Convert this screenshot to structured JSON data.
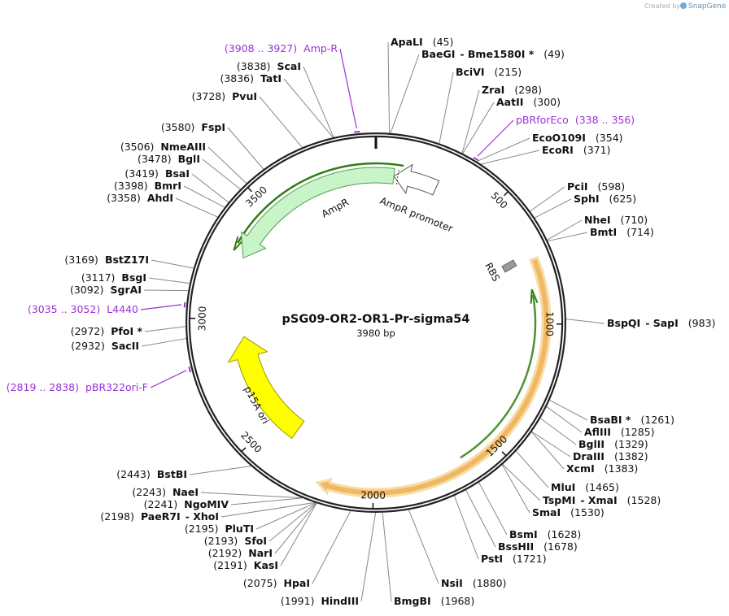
{
  "credit": "Created by",
  "brand": "SnapGene",
  "map": {
    "name": "pSG09-OR2-OR1-Pr-sigma54",
    "size": {
      "value": 3980,
      "label": "3980 bp"
    },
    "ticks": [
      500,
      1000,
      1500,
      2000,
      2500,
      3000,
      3500
    ],
    "sites": [
      {
        "name": "ApaLI",
        "location": {
          "value": 45,
          "label": "(45)"
        }
      },
      {
        "name": "BaeGI",
        "name2": "- Bme1580I *",
        "location": {
          "value": 49,
          "label": "(49)"
        }
      },
      {
        "name": "BciVI",
        "location": {
          "value": 215,
          "label": "(215)"
        }
      },
      {
        "name": "ZraI",
        "location": {
          "value": 298,
          "label": "(298)"
        }
      },
      {
        "name": "AatII",
        "location": {
          "value": 300,
          "label": "(300)"
        }
      },
      {
        "name": "EcoO109I",
        "location": {
          "value": 354,
          "label": "(354)"
        }
      },
      {
        "name": "EcoRI",
        "location": {
          "value": 371,
          "label": "(371)"
        }
      },
      {
        "name": "PciI",
        "location": {
          "value": 598,
          "label": "(598)"
        }
      },
      {
        "name": "SphI",
        "location": {
          "value": 625,
          "label": "(625)"
        }
      },
      {
        "name": "NheI",
        "location": {
          "value": 710,
          "label": "(710)"
        }
      },
      {
        "name": "BmtI",
        "location": {
          "value": 714,
          "label": "(714)"
        }
      },
      {
        "name": "BspQI",
        "name2": "- SapI",
        "location": {
          "value": 983,
          "label": "(983)"
        }
      },
      {
        "name": "BsaBI *",
        "location": {
          "value": 1261,
          "label": "(1261)"
        }
      },
      {
        "name": "AflIII",
        "location": {
          "value": 1285,
          "label": "(1285)"
        }
      },
      {
        "name": "BglII",
        "location": {
          "value": 1329,
          "label": "(1329)"
        }
      },
      {
        "name": "DraIII",
        "location": {
          "value": 1382,
          "label": "(1382)"
        }
      },
      {
        "name": "XcmI",
        "location": {
          "value": 1383,
          "label": "(1383)"
        }
      },
      {
        "name": "MluI",
        "location": {
          "value": 1465,
          "label": "(1465)"
        }
      },
      {
        "name": "TspMI",
        "name2": "- XmaI",
        "location": {
          "value": 1528,
          "label": "(1528)"
        }
      },
      {
        "name": "SmaI",
        "location": {
          "value": 1530,
          "label": "(1530)"
        }
      },
      {
        "name": "BsmI",
        "location": {
          "value": 1628,
          "label": "(1628)"
        }
      },
      {
        "name": "BssHII",
        "location": {
          "value": 1678,
          "label": "(1678)"
        }
      },
      {
        "name": "PstI",
        "location": {
          "value": 1721,
          "label": "(1721)"
        }
      },
      {
        "name": "NsiI",
        "location": {
          "value": 1880,
          "label": "(1880)"
        }
      },
      {
        "name": "BmgBI",
        "location": {
          "value": 1968,
          "label": "(1968)"
        }
      },
      {
        "name": "HindIII",
        "location": {
          "value": 1991,
          "label": "(1991)"
        }
      },
      {
        "name": "HpaI",
        "location": {
          "value": 2075,
          "label": "(2075)"
        }
      },
      {
        "name": "KasI",
        "location": {
          "value": 2191,
          "label": "(2191)"
        }
      },
      {
        "name": "NarI",
        "location": {
          "value": 2192,
          "label": "(2192)"
        }
      },
      {
        "name": "SfoI",
        "location": {
          "value": 2193,
          "label": "(2193)"
        }
      },
      {
        "name": "PluTI",
        "location": {
          "value": 2195,
          "label": "(2195)"
        }
      },
      {
        "name": "PaeR7I",
        "name2": "- XhoI",
        "location": {
          "value": 2198,
          "label": "(2198)"
        }
      },
      {
        "name": "NgoMIV",
        "location": {
          "value": 2241,
          "label": "(2241)"
        }
      },
      {
        "name": "NaeI",
        "location": {
          "value": 2243,
          "label": "(2243)"
        }
      },
      {
        "name": "BstBI",
        "location": {
          "value": 2443,
          "label": "(2443)"
        }
      },
      {
        "name": "SacII",
        "location": {
          "value": 2932,
          "label": "(2932)"
        }
      },
      {
        "name": "PfoI *",
        "location": {
          "value": 2972,
          "label": "(2972)"
        }
      },
      {
        "name": "SgrAI",
        "location": {
          "value": 3092,
          "label": "(3092)"
        }
      },
      {
        "name": "BsgI",
        "location": {
          "value": 3117,
          "label": "(3117)"
        }
      },
      {
        "name": "BstZ17I",
        "location": {
          "value": 3169,
          "label": "(3169)"
        }
      },
      {
        "name": "AhdI",
        "location": {
          "value": 3358,
          "label": "(3358)"
        }
      },
      {
        "name": "BmrI",
        "location": {
          "value": 3398,
          "label": "(3398)"
        }
      },
      {
        "name": "BsaI",
        "location": {
          "value": 3419,
          "label": "(3419)"
        }
      },
      {
        "name": "BglI",
        "location": {
          "value": 3478,
          "label": "(3478)"
        }
      },
      {
        "name": "NmeAIII",
        "location": {
          "value": 3506,
          "label": "(3506)"
        }
      },
      {
        "name": "FspI",
        "location": {
          "value": 3580,
          "label": "(3580)"
        }
      },
      {
        "name": "PvuI",
        "location": {
          "value": 3728,
          "label": "(3728)"
        }
      },
      {
        "name": "TatI",
        "location": {
          "value": 3836,
          "label": "(3836)"
        }
      },
      {
        "name": "ScaI",
        "location": {
          "value": 3838,
          "label": "(3838)"
        }
      }
    ],
    "primers": [
      {
        "name": "Amp-R",
        "location": {
          "start": 3908,
          "end": 3927,
          "label": "(3908 .. 3927)"
        }
      },
      {
        "name": "pBRforEco",
        "location": {
          "start": 338,
          "end": 356,
          "label": "(338 .. 356)"
        }
      },
      {
        "name": "L4440",
        "location": {
          "start": 3035,
          "end": 3052,
          "label": "(3035 .. 3052)"
        }
      },
      {
        "name": "pBR322ori-F",
        "location": {
          "start": 2819,
          "end": 2838,
          "label": "(2819 .. 2838)"
        }
      }
    ],
    "features": [
      {
        "name": "AmpR"
      },
      {
        "name": "AmpR promoter"
      },
      {
        "name": "p15A ori"
      },
      {
        "name": "RBS"
      }
    ]
  }
}
